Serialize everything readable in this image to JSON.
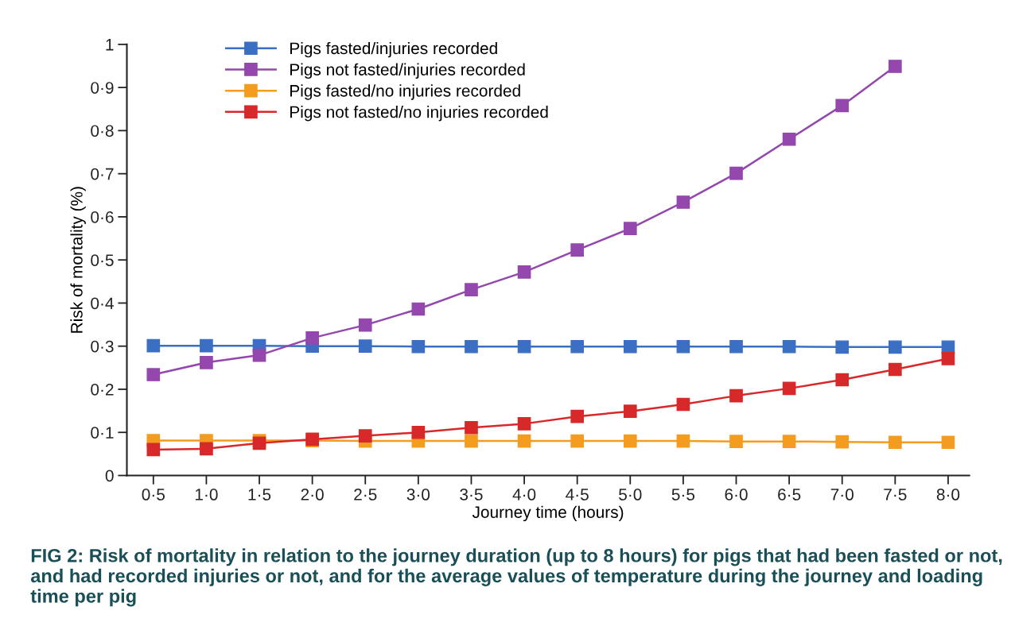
{
  "chart_data": {
    "type": "line",
    "xlabel": "Journey time (hours)",
    "ylabel": "Risk of mortality (%)",
    "categories": [
      "0·5",
      "1·0",
      "1·5",
      "2·0",
      "2·5",
      "3·0",
      "3·5",
      "4·0",
      "4·5",
      "5·0",
      "5·5",
      "6·0",
      "6·5",
      "7·0",
      "7·5",
      "8·0"
    ],
    "series": [
      {
        "name": "Pigs fasted/injuries recorded",
        "color": "#3b6fc4",
        "values": [
          0.301,
          0.301,
          0.301,
          0.3,
          0.3,
          0.299,
          0.299,
          0.299,
          0.299,
          0.299,
          0.299,
          0.299,
          0.299,
          0.298,
          0.298,
          0.298
        ]
      },
      {
        "name": "Pigs not fasted/injuries recorded",
        "color": "#9447ad",
        "values": [
          0.234,
          0.262,
          0.279,
          0.319,
          0.349,
          0.386,
          0.431,
          0.472,
          0.523,
          0.573,
          0.634,
          0.701,
          0.78,
          0.858,
          0.949,
          null
        ]
      },
      {
        "name": "Pigs fasted/no injuries recorded",
        "color": "#f39c1f",
        "values": [
          0.081,
          0.081,
          0.081,
          0.081,
          0.08,
          0.08,
          0.08,
          0.08,
          0.08,
          0.08,
          0.08,
          0.079,
          0.079,
          0.078,
          0.077,
          0.077
        ]
      },
      {
        "name": "Pigs not fasted/no injuries recorded",
        "color": "#d7282a",
        "values": [
          0.06,
          0.062,
          0.075,
          0.084,
          0.092,
          0.1,
          0.111,
          0.12,
          0.137,
          0.149,
          0.165,
          0.185,
          0.202,
          0.222,
          0.246,
          0.271
        ]
      }
    ],
    "ylim": [
      0,
      1
    ],
    "yticks": [
      0,
      {
        "value": 0.1,
        "label": "0·1"
      },
      {
        "value": 0.2,
        "label": "0·2"
      },
      {
        "value": 0.3,
        "label": "0·3"
      },
      {
        "value": 0.4,
        "label": "0·4"
      },
      {
        "value": 0.5,
        "label": "0·5"
      },
      {
        "value": 0.6,
        "label": "0·6"
      },
      {
        "value": 0.7,
        "label": "0·7"
      },
      {
        "value": 0.8,
        "label": "0·8"
      },
      {
        "value": 0.9,
        "label": "0·9"
      },
      1
    ],
    "grid": false,
    "legend": "top left",
    "marker": "square",
    "line_style": "solid",
    "annotations": [
      "FIG 2: Risk of mortality in relation to the journey duration (up to 8 hours) for pigs that had been fasted or not, and had recorded injuries or not, and for the average values of temperature during the journey and loading time per pig"
    ]
  }
}
